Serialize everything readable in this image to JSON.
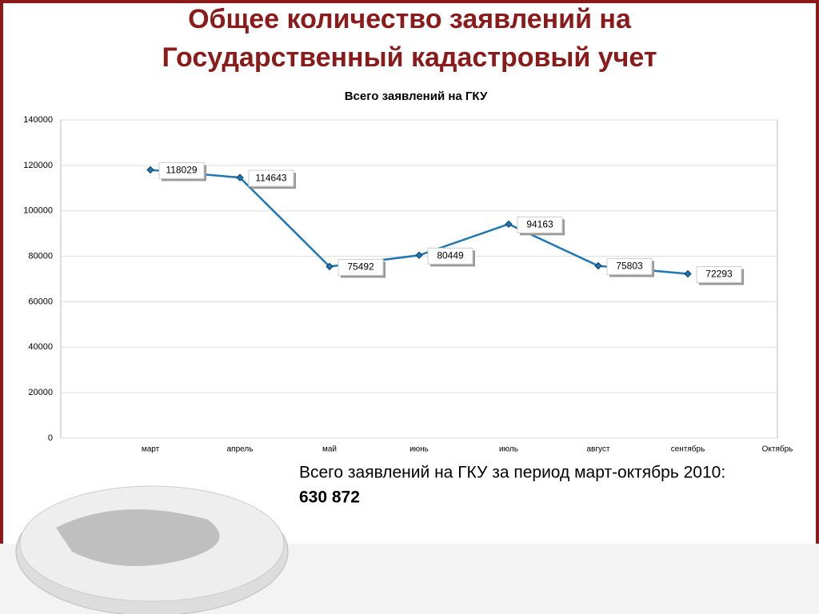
{
  "slide": {
    "title": [
      "Общее количество заявлений на",
      "Государственный кадастровый учет"
    ],
    "note": "Всего заявлений на ГКУ за период март-октябрь 2010:",
    "total": "630 872"
  },
  "chart_data": {
    "type": "line",
    "title": "Всего заявлений на ГКУ",
    "categories": [
      "март",
      "апрель",
      "май",
      "июнь",
      "июль",
      "август",
      "сентябрь",
      "Октябрь"
    ],
    "series": [
      {
        "name": "Всего заявлений на ГКУ",
        "color": "#1f77b4",
        "values": [
          118029,
          114643,
          75492,
          80449,
          94163,
          75803,
          72293,
          null
        ]
      }
    ],
    "ylim": [
      0,
      140000
    ],
    "yticks": [
      0,
      20000,
      40000,
      60000,
      80000,
      100000,
      120000,
      140000
    ],
    "grid": true
  }
}
